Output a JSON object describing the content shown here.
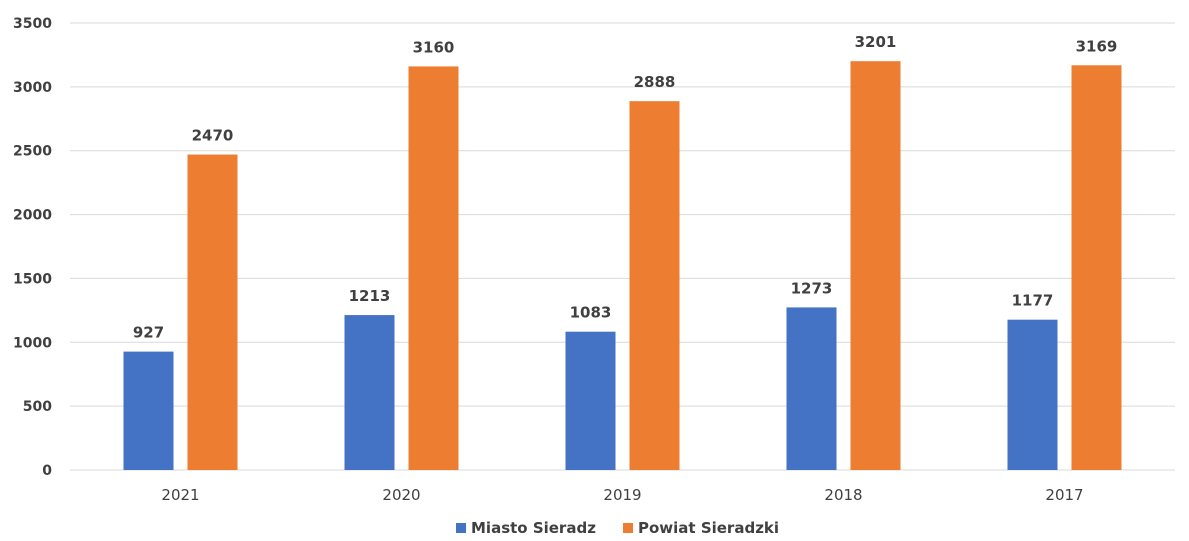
{
  "chart_data": {
    "type": "bar",
    "categories": [
      "2021",
      "2020",
      "2019",
      "2018",
      "2017"
    ],
    "series": [
      {
        "name": "Miasto Sieradz",
        "values": [
          927,
          1213,
          1083,
          1273,
          1177
        ],
        "color": "#4472C4"
      },
      {
        "name": "Powiat Sieradzki",
        "values": [
          2470,
          3160,
          2888,
          3201,
          3169
        ],
        "color": "#ED7D31"
      }
    ],
    "title": "",
    "xlabel": "",
    "ylabel": "",
    "ylim": [
      0,
      3500
    ],
    "yticks": [
      0,
      500,
      1000,
      1500,
      2000,
      2500,
      3000,
      3500
    ],
    "grid": true,
    "legend": "bottom",
    "data_labels": true
  }
}
